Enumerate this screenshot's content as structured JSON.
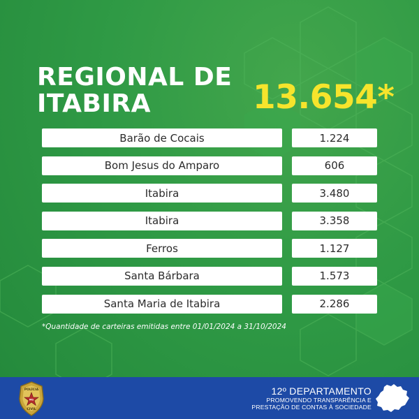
{
  "title": {
    "line1": "REGIONAL DE",
    "line2": "ITABIRA"
  },
  "total": "13.654*",
  "rows": [
    {
      "name": "Barão de Cocais",
      "value": "1.224"
    },
    {
      "name": "Bom Jesus do Amparo",
      "value": "606"
    },
    {
      "name": "Itabira",
      "value": "3.480"
    },
    {
      "name": "Itabira",
      "value": "3.358"
    },
    {
      "name": "Ferros",
      "value": "1.127"
    },
    {
      "name": "Santa Bárbara",
      "value": "1.573"
    },
    {
      "name": "Santa Maria de Itabira",
      "value": "2.286"
    }
  ],
  "footnote": "*Quantidade de carteiras emitidas entre 01/01/2024 a 31/10/2024",
  "footer": {
    "department": "12º DEPARTAMENTO",
    "subtitle_line1": "PROMOVENDO TRANSPARÊNCIA E",
    "subtitle_line2": "PRESTAÇÃO DE CONTAS À SOCIEDADE",
    "badge_text_top": "POLÍCIA",
    "badge_text_bottom": "CIVIL",
    "badge_text_center": "MG"
  },
  "colors": {
    "background_green": "#2f9a45",
    "accent_yellow": "#f6e42c",
    "footer_blue": "#1d4aa6",
    "cell_white": "#ffffff"
  },
  "icons": {
    "badge": "policia-civil-badge-icon",
    "map": "minas-gerais-map-icon"
  }
}
